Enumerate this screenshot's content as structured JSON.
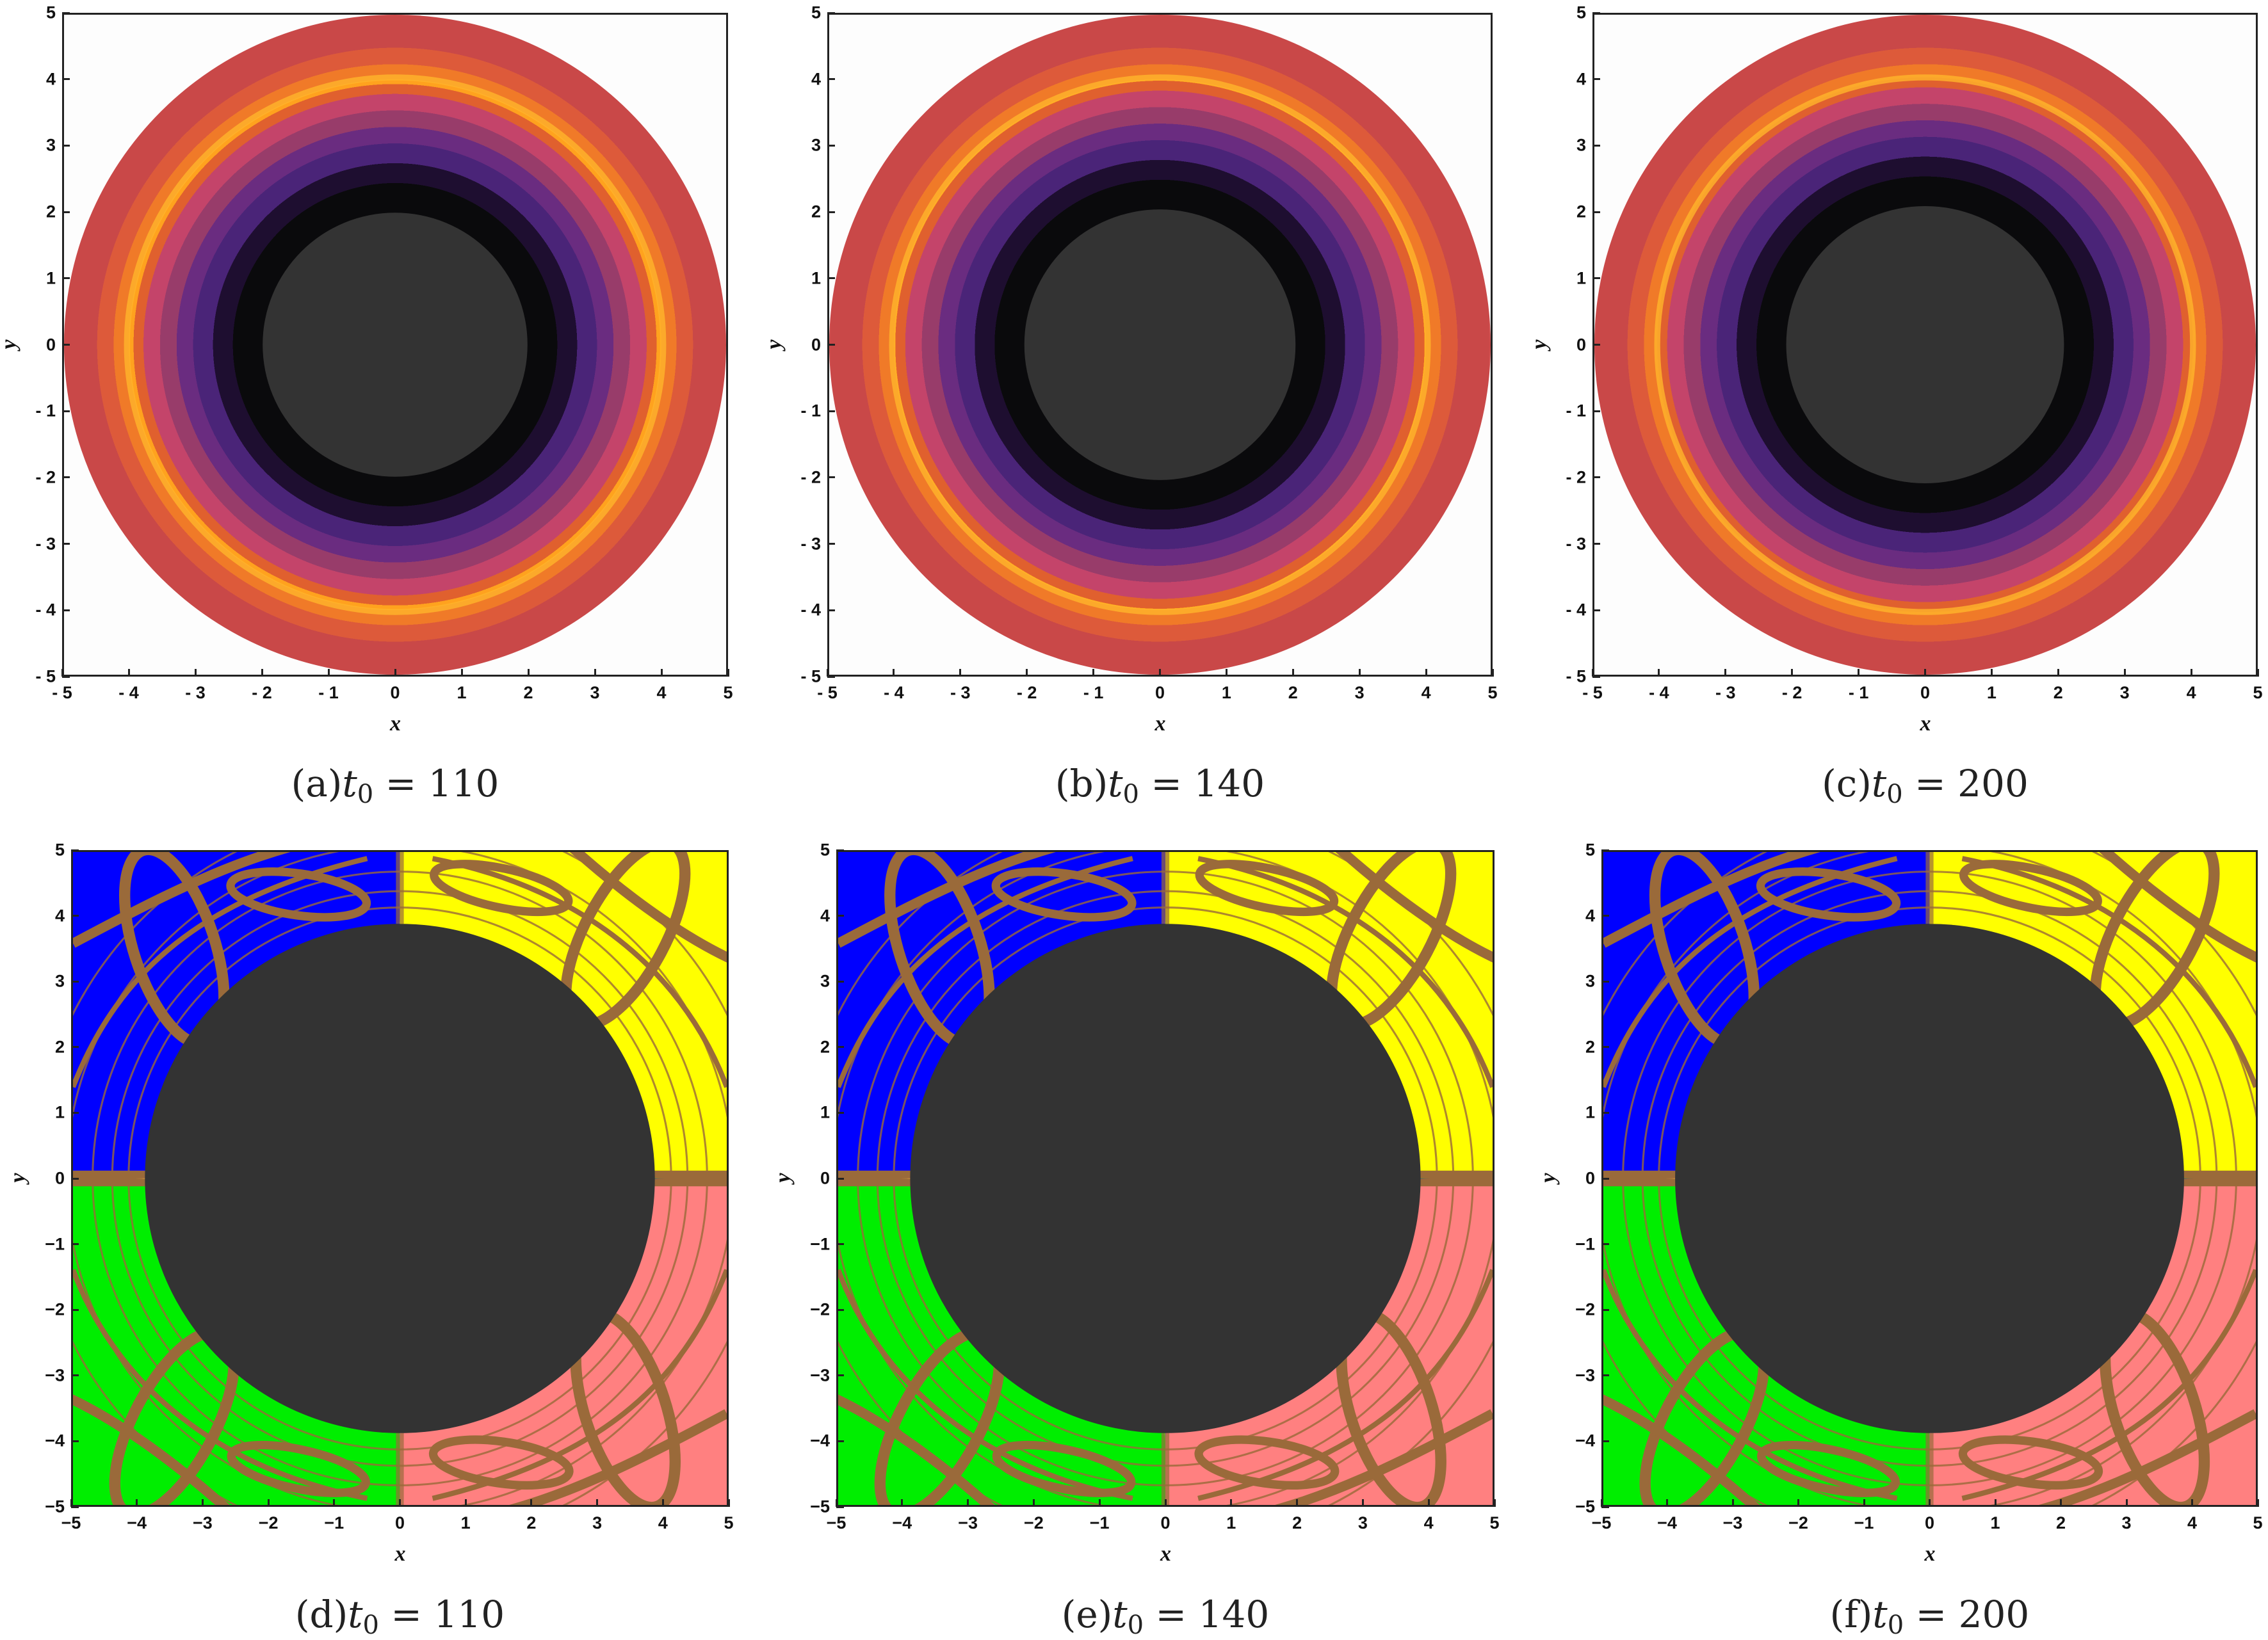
{
  "chart_data": [
    {
      "type": "heatmap",
      "panel": "(a)",
      "t0_symbol": "t",
      "t0_sub": "0",
      "equals": " = ",
      "t0": "110",
      "xlabel": "x",
      "ylabel": "y",
      "xlim": [
        -5,
        5
      ],
      "ylim": [
        -5,
        5
      ],
      "xticks": [
        "- 5",
        "- 4",
        "- 3",
        "- 2",
        "- 1",
        "0",
        "1",
        "2",
        "3",
        "4",
        "5"
      ],
      "yticks": [
        "5",
        "4",
        "3",
        "2",
        "1",
        "0",
        "- 1",
        "- 2",
        "- 3",
        "- 4",
        "- 5"
      ],
      "style": "radial",
      "domain_radius": 5,
      "inner_radius": 2.0
    },
    {
      "type": "heatmap",
      "panel": "(b)",
      "t0_symbol": "t",
      "t0_sub": "0",
      "equals": " = ",
      "t0": "140",
      "xlabel": "x",
      "ylabel": "y",
      "xlim": [
        -5,
        5
      ],
      "ylim": [
        -5,
        5
      ],
      "xticks": [
        "- 5",
        "- 4",
        "- 3",
        "- 2",
        "- 1",
        "0",
        "1",
        "2",
        "3",
        "4",
        "5"
      ],
      "yticks": [
        "5",
        "4",
        "3",
        "2",
        "1",
        "0",
        "- 1",
        "- 2",
        "- 3",
        "- 4",
        "- 5"
      ],
      "style": "radial",
      "domain_radius": 5,
      "inner_radius": 2.05
    },
    {
      "type": "heatmap",
      "panel": "(c)",
      "t0_symbol": "t",
      "t0_sub": "0",
      "equals": " = ",
      "t0": "200",
      "xlabel": "x",
      "ylabel": "y",
      "xlim": [
        -5,
        5
      ],
      "ylim": [
        -5,
        5
      ],
      "xticks": [
        "- 5",
        "- 4",
        "- 3",
        "- 2",
        "- 1",
        "0",
        "1",
        "2",
        "3",
        "4",
        "5"
      ],
      "yticks": [
        "5",
        "4",
        "3",
        "2",
        "1",
        "0",
        "- 1",
        "- 2",
        "- 3",
        "- 4",
        "- 5"
      ],
      "style": "radial",
      "domain_radius": 5,
      "inner_radius": 2.1
    },
    {
      "type": "heatmap",
      "panel": "(d)",
      "t0_symbol": "t",
      "t0_sub": "0",
      "equals": " = ",
      "t0": "110",
      "xlabel": "x",
      "ylabel": "y",
      "xlim": [
        -5,
        5
      ],
      "ylim": [
        -5,
        5
      ],
      "xticks": [
        "−5",
        "−4",
        "−3",
        "−2",
        "−1",
        "0",
        "1",
        "2",
        "3",
        "4",
        "5"
      ],
      "yticks": [
        "5",
        "4",
        "3",
        "2",
        "1",
        "0",
        "−1",
        "−2",
        "−3",
        "−4",
        "−5"
      ],
      "style": "basins",
      "inner_radius": 3.9
    },
    {
      "type": "heatmap",
      "panel": "(e)",
      "t0_symbol": "t",
      "t0_sub": "0",
      "equals": " = ",
      "t0": "140",
      "xlabel": "x",
      "ylabel": "y",
      "xlim": [
        -5,
        5
      ],
      "ylim": [
        -5,
        5
      ],
      "xticks": [
        "−5",
        "−4",
        "−3",
        "−2",
        "−1",
        "0",
        "1",
        "2",
        "3",
        "4",
        "5"
      ],
      "yticks": [
        "5",
        "4",
        "3",
        "2",
        "1",
        "0",
        "−1",
        "−2",
        "−3",
        "−4",
        "−5"
      ],
      "style": "basins",
      "inner_radius": 3.9
    },
    {
      "type": "heatmap",
      "panel": "(f)",
      "t0_symbol": "t",
      "t0_sub": "0",
      "equals": " = ",
      "t0": "200",
      "xlabel": "x",
      "ylabel": "y",
      "xlim": [
        -5,
        5
      ],
      "ylim": [
        -5,
        5
      ],
      "xticks": [
        "−5",
        "−4",
        "−3",
        "−2",
        "−1",
        "0",
        "1",
        "2",
        "3",
        "4",
        "5"
      ],
      "yticks": [
        "5",
        "4",
        "3",
        "2",
        "1",
        "0",
        "−1",
        "−2",
        "−3",
        "−4",
        "−5"
      ],
      "style": "basins",
      "inner_radius": 3.9
    }
  ],
  "colors": {
    "radial_bands": [
      "#333333",
      "#0a0a0c",
      "#1e0e30",
      "#4a2478",
      "#6a2c80",
      "#983c6a",
      "#c4446a",
      "#e0602e",
      "#ffa21e",
      "#f07a28",
      "#dd5a3a",
      "#c94848"
    ],
    "basin_top_left": "#0000ff",
    "basin_top_right": "#ffff00",
    "basin_bottom_left": "#00ee00",
    "basin_bottom_right": "#ff8080",
    "boundary": "#9a6a3a",
    "inner_disk": "#333333"
  }
}
